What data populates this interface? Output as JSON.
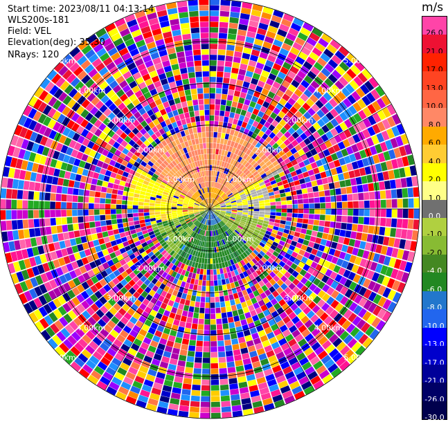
{
  "header": {
    "start_time": "Start time: 2023/08/11 04:13:14",
    "site": "WLS200s-181",
    "field": "Field: VEL",
    "elevation": "Elevation(deg): 35.30",
    "nrays": "NRays: 120"
  },
  "colorbar": {
    "unit": "m/s",
    "labels": [
      "26.0",
      "21.0",
      "17.0",
      "13.0",
      "10.0",
      "8.0",
      "6.0",
      "4.0",
      "2.0",
      "1.0",
      "0.0",
      "-1.0",
      "-2.0",
      "-4.0",
      "-6.0",
      "-8.0",
      "-10.0",
      "-13.0",
      "-17.0",
      "-21.0",
      "-26.0",
      "-30.0"
    ],
    "colors": [
      "#ff44a8",
      "#ee1133",
      "#ff2200",
      "#ff4422",
      "#ff6644",
      "#ff8866",
      "#ffaa00",
      "#ffcc33",
      "#ffff00",
      "#ffff88",
      "#707070",
      "#b0d040",
      "#88bb33",
      "#448822",
      "#228822",
      "#2277cc",
      "#2266ee",
      "#0000ff",
      "#0000cc",
      "#000099",
      "#000066",
      "#00004d"
    ]
  },
  "ring_labels": {
    "r1": "1.00km",
    "r2": "2.00km",
    "r3": "3.00km",
    "r4": "4.00km",
    "r5": "5.00km"
  }
}
